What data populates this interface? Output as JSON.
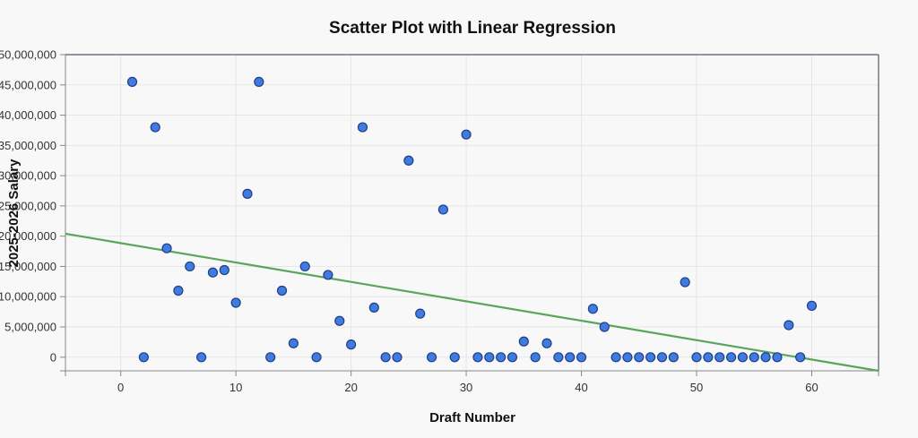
{
  "colors": {
    "point_fill": "#3f7be0",
    "point_stroke": "#1f3f86",
    "regression_line": "#5aa55a",
    "background": "#f8f8f8"
  },
  "chart_data": {
    "type": "scatter",
    "title": "Scatter Plot with Linear Regression",
    "xlabel": "Draft Number",
    "ylabel": "2025-2026 Salary",
    "xlim": [
      -4.8,
      65.8
    ],
    "ylim": [
      -2250000,
      50000000
    ],
    "x_ticks": [
      0,
      10,
      20,
      30,
      40,
      50,
      60
    ],
    "y_ticks": [
      0,
      5000000,
      10000000,
      15000000,
      20000000,
      25000000,
      30000000,
      35000000,
      40000000,
      45000000,
      50000000
    ],
    "y_tick_labels": [
      "0",
      "5,000,000",
      "10,000,000",
      "15,000,000",
      "20,000,000",
      "25,000,000",
      "30,000,000",
      "35,000,000",
      "40,000,000",
      "45,000,000",
      "50,000,000"
    ],
    "grid": true,
    "legend": "none",
    "series": [
      {
        "type": "scatter",
        "points": [
          [
            1,
            45500000
          ],
          [
            2,
            0
          ],
          [
            3,
            38000000
          ],
          [
            4,
            18000000
          ],
          [
            5,
            11000000
          ],
          [
            6,
            15000000
          ],
          [
            7,
            0
          ],
          [
            8,
            14000000
          ],
          [
            9,
            14400000
          ],
          [
            10,
            9000000
          ],
          [
            11,
            27000000
          ],
          [
            12,
            45500000
          ],
          [
            13,
            0
          ],
          [
            14,
            11000000
          ],
          [
            15,
            2300000
          ],
          [
            16,
            15000000
          ],
          [
            17,
            0
          ],
          [
            18,
            13600000
          ],
          [
            19,
            6000000
          ],
          [
            20,
            2100000
          ],
          [
            21,
            38000000
          ],
          [
            22,
            8200000
          ],
          [
            23,
            0
          ],
          [
            24,
            0
          ],
          [
            25,
            32500000
          ],
          [
            26,
            7200000
          ],
          [
            27,
            0
          ],
          [
            28,
            24400000
          ],
          [
            29,
            0
          ],
          [
            30,
            36800000
          ],
          [
            31,
            0
          ],
          [
            32,
            0
          ],
          [
            33,
            0
          ],
          [
            34,
            0
          ],
          [
            35,
            2600000
          ],
          [
            36,
            0
          ],
          [
            37,
            2300000
          ],
          [
            38,
            0
          ],
          [
            39,
            0
          ],
          [
            40,
            0
          ],
          [
            41,
            8000000
          ],
          [
            42,
            5000000
          ],
          [
            43,
            0
          ],
          [
            44,
            0
          ],
          [
            45,
            0
          ],
          [
            46,
            0
          ],
          [
            47,
            0
          ],
          [
            48,
            0
          ],
          [
            49,
            12400000
          ],
          [
            50,
            0
          ],
          [
            51,
            0
          ],
          [
            52,
            0
          ],
          [
            53,
            0
          ],
          [
            54,
            0
          ],
          [
            55,
            0
          ],
          [
            56,
            0
          ],
          [
            57,
            0
          ],
          [
            58,
            5300000
          ],
          [
            59,
            0
          ],
          [
            60,
            8500000
          ]
        ]
      },
      {
        "type": "line",
        "x": [
          -4.8,
          65.8
        ],
        "y": [
          20400000,
          -2250000
        ]
      }
    ]
  }
}
